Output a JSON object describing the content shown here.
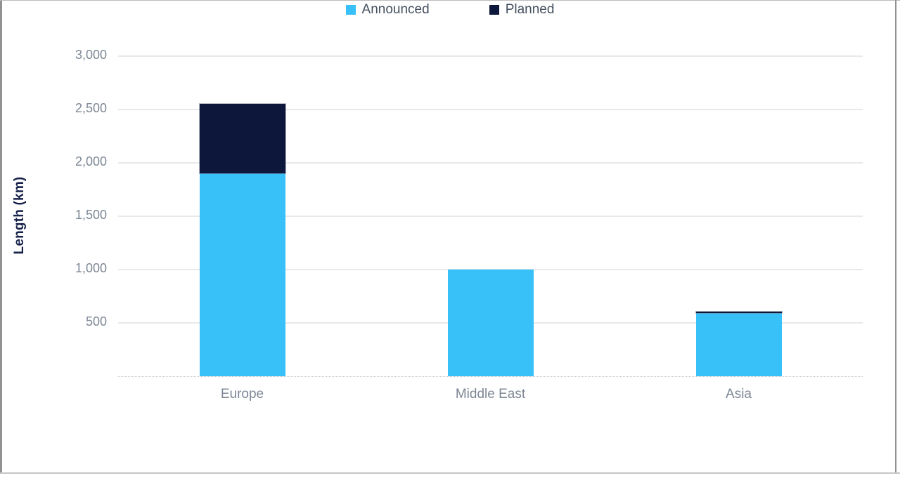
{
  "chart_data": {
    "type": "bar",
    "stacked": true,
    "categories": [
      "Europe",
      "Middle East",
      "Asia"
    ],
    "series": [
      {
        "name": "Announced",
        "color": "#38C0F8",
        "values": [
          1900,
          1000,
          590
        ]
      },
      {
        "name": "Planned",
        "color": "#0D163B",
        "values": [
          650,
          0,
          15
        ]
      }
    ],
    "ylabel": "Length (km)",
    "yticks": [
      {
        "value": 500,
        "label": "500"
      },
      {
        "value": 1000,
        "label": "1,000"
      },
      {
        "value": 1500,
        "label": "1,500"
      },
      {
        "value": 2000,
        "label": "2,000"
      },
      {
        "value": 2500,
        "label": "2,500"
      },
      {
        "value": 3000,
        "label": "3,000"
      }
    ],
    "ylim": [
      0,
      3000
    ],
    "grid": true,
    "legend_position": "top-center"
  }
}
